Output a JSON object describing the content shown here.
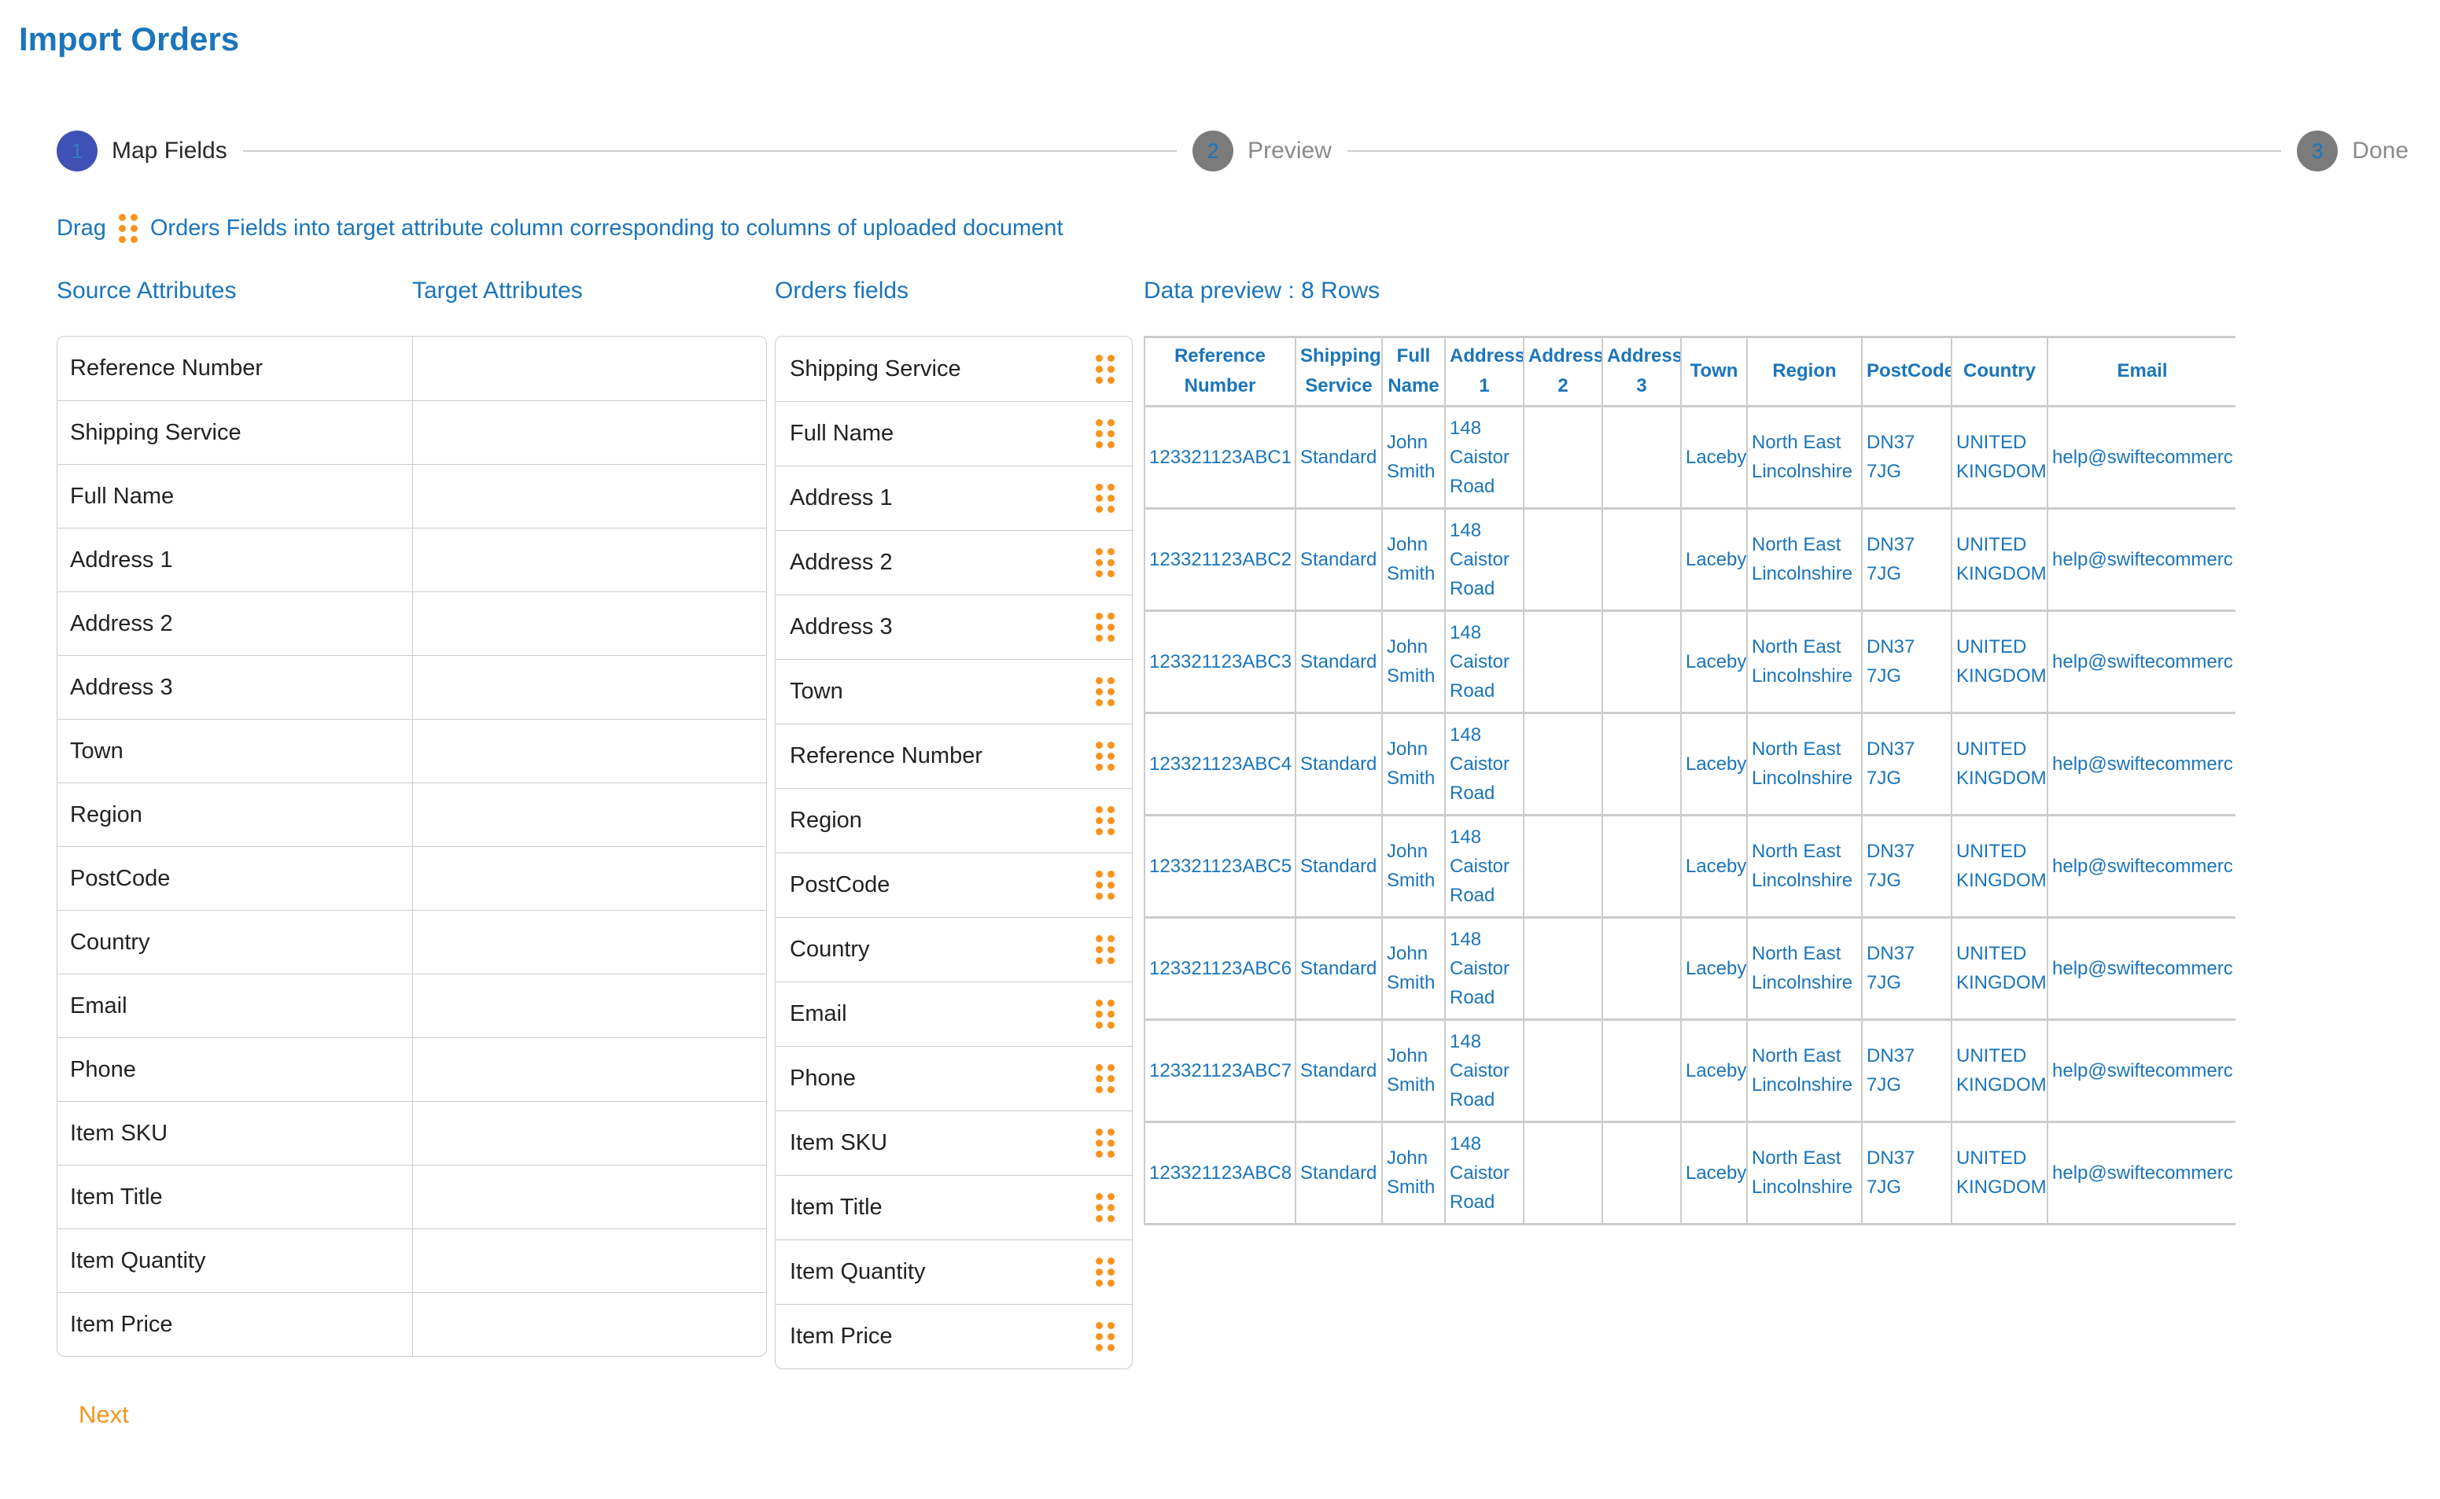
{
  "page": {
    "title": "Import Orders"
  },
  "colors": {
    "accent_blue": "#1b75bb",
    "accent_orange": "#f7941e",
    "active_step_indigo": "#3f51b5",
    "inactive_step_gray": "#7b7b7b",
    "border_gray": "#cccccc"
  },
  "stepper": {
    "steps": [
      {
        "number": "1",
        "label": "Map Fields",
        "state": "active"
      },
      {
        "number": "2",
        "label": "Preview",
        "state": "inactive"
      },
      {
        "number": "3",
        "label": "Done",
        "state": "inactive"
      }
    ]
  },
  "instruction": {
    "drag_word": "Drag",
    "text": "Orders Fields into target attribute column corresponding to columns of uploaded document",
    "drag_icon": "drag-handle-dots"
  },
  "mapping": {
    "source_header": "Source Attributes",
    "target_header": "Target Attributes",
    "orders_header": "Orders fields",
    "source_attributes": [
      "Reference Number",
      "Shipping Service",
      "Full Name",
      "Address 1",
      "Address 2",
      "Address 3",
      "Town",
      "Region",
      "PostCode",
      "Country",
      "Email",
      "Phone",
      "Item SKU",
      "Item Title",
      "Item Quantity",
      "Item Price"
    ],
    "orders_fields": [
      "Shipping Service",
      "Full Name",
      "Address 1",
      "Address 2",
      "Address 3",
      "Town",
      "Reference Number",
      "Region",
      "PostCode",
      "Country",
      "Email",
      "Phone",
      "Item SKU",
      "Item Title",
      "Item Quantity",
      "Item Price"
    ]
  },
  "preview": {
    "title": "Data preview : 8 Rows",
    "columns": [
      "Reference Number",
      "Shipping Service",
      "Full Name",
      "Address 1",
      "Address 2",
      "Address 3",
      "Town",
      "Region",
      "PostCode",
      "Country",
      "Email"
    ],
    "rows": [
      [
        "123321123ABC1",
        "Standard",
        "John Smith",
        "148 Caistor Road",
        "",
        "",
        "Laceby",
        "North East Lincolnshire",
        "DN37 7JG",
        "UNITED KINGDOM",
        "help@swiftecommerc"
      ],
      [
        "123321123ABC2",
        "Standard",
        "John Smith",
        "148 Caistor Road",
        "",
        "",
        "Laceby",
        "North East Lincolnshire",
        "DN37 7JG",
        "UNITED KINGDOM",
        "help@swiftecommerc"
      ],
      [
        "123321123ABC3",
        "Standard",
        "John Smith",
        "148 Caistor Road",
        "",
        "",
        "Laceby",
        "North East Lincolnshire",
        "DN37 7JG",
        "UNITED KINGDOM",
        "help@swiftecommerc"
      ],
      [
        "123321123ABC4",
        "Standard",
        "John Smith",
        "148 Caistor Road",
        "",
        "",
        "Laceby",
        "North East Lincolnshire",
        "DN37 7JG",
        "UNITED KINGDOM",
        "help@swiftecommerc"
      ],
      [
        "123321123ABC5",
        "Standard",
        "John Smith",
        "148 Caistor Road",
        "",
        "",
        "Laceby",
        "North East Lincolnshire",
        "DN37 7JG",
        "UNITED KINGDOM",
        "help@swiftecommerc"
      ],
      [
        "123321123ABC6",
        "Standard",
        "John Smith",
        "148 Caistor Road",
        "",
        "",
        "Laceby",
        "North East Lincolnshire",
        "DN37 7JG",
        "UNITED KINGDOM",
        "help@swiftecommerc"
      ],
      [
        "123321123ABC7",
        "Standard",
        "John Smith",
        "148 Caistor Road",
        "",
        "",
        "Laceby",
        "North East Lincolnshire",
        "DN37 7JG",
        "UNITED KINGDOM",
        "help@swiftecommerc"
      ],
      [
        "123321123ABC8",
        "Standard",
        "John Smith",
        "148 Caistor Road",
        "",
        "",
        "Laceby",
        "North East Lincolnshire",
        "DN37 7JG",
        "UNITED KINGDOM",
        "help@swiftecommerc"
      ]
    ]
  },
  "footer": {
    "next_label": "Next"
  }
}
